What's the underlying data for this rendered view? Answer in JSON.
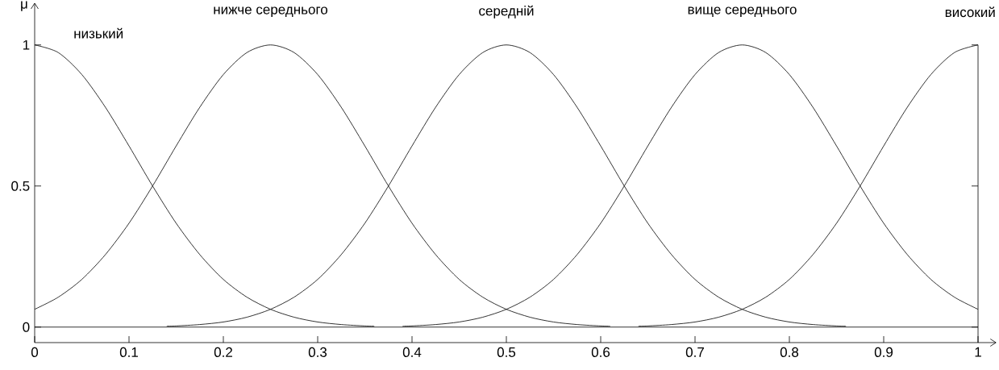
{
  "chart_data": {
    "type": "line",
    "ylabel": "μ",
    "xlim": [
      0,
      1
    ],
    "ylim": [
      -0.055,
      1.15
    ],
    "xticks": [
      0,
      0.1,
      0.2,
      0.3,
      0.4,
      0.5,
      0.6,
      0.7,
      0.8,
      0.9,
      1
    ],
    "yticks": [
      0,
      0.5,
      1
    ],
    "series": [
      {
        "name": "низький",
        "color": "#000000",
        "x": [
          0,
          0.025,
          0.05,
          0.075,
          0.1,
          0.125,
          0.15,
          0.175,
          0.2,
          0.225,
          0.25,
          0.275,
          0.3,
          0.325,
          0.35,
          0.36
        ],
        "values": [
          1,
          0.973,
          0.895,
          0.779,
          0.642,
          0.5,
          0.368,
          0.257,
          0.169,
          0.106,
          0.063,
          0.035,
          0.018,
          0.009,
          0.004,
          0.003
        ]
      },
      {
        "name": "нижче середнього",
        "color": "#000000",
        "x": [
          0,
          0.025,
          0.05,
          0.075,
          0.1,
          0.125,
          0.15,
          0.175,
          0.2,
          0.225,
          0.25,
          0.275,
          0.3,
          0.325,
          0.35,
          0.375,
          0.4,
          0.425,
          0.45,
          0.475,
          0.5,
          0.525,
          0.55,
          0.575,
          0.6,
          0.61
        ],
        "values": [
          0.063,
          0.106,
          0.169,
          0.257,
          0.368,
          0.5,
          0.642,
          0.779,
          0.895,
          0.973,
          1,
          0.973,
          0.895,
          0.779,
          0.642,
          0.5,
          0.368,
          0.257,
          0.169,
          0.106,
          0.063,
          0.035,
          0.018,
          0.009,
          0.004,
          0.003
        ]
      },
      {
        "name": "середній",
        "color": "#000000",
        "x": [
          0.14,
          0.15,
          0.175,
          0.2,
          0.225,
          0.25,
          0.275,
          0.3,
          0.325,
          0.35,
          0.375,
          0.4,
          0.425,
          0.45,
          0.475,
          0.5,
          0.525,
          0.55,
          0.575,
          0.6,
          0.625,
          0.65,
          0.675,
          0.7,
          0.725,
          0.75,
          0.775,
          0.8,
          0.825,
          0.85,
          0.86
        ],
        "values": [
          0.003,
          0.004,
          0.009,
          0.018,
          0.035,
          0.063,
          0.106,
          0.169,
          0.257,
          0.368,
          0.5,
          0.642,
          0.779,
          0.895,
          0.973,
          1,
          0.973,
          0.895,
          0.779,
          0.642,
          0.5,
          0.368,
          0.257,
          0.169,
          0.106,
          0.063,
          0.035,
          0.018,
          0.009,
          0.004,
          0.003
        ]
      },
      {
        "name": "вище середнього",
        "color": "#000000",
        "x": [
          0.39,
          0.4,
          0.425,
          0.45,
          0.475,
          0.5,
          0.525,
          0.55,
          0.575,
          0.6,
          0.625,
          0.65,
          0.675,
          0.7,
          0.725,
          0.75,
          0.775,
          0.8,
          0.825,
          0.85,
          0.875,
          0.9,
          0.925,
          0.95,
          0.975,
          1
        ],
        "values": [
          0.003,
          0.004,
          0.009,
          0.018,
          0.035,
          0.063,
          0.106,
          0.169,
          0.257,
          0.368,
          0.5,
          0.642,
          0.779,
          0.895,
          0.973,
          1,
          0.973,
          0.895,
          0.779,
          0.642,
          0.5,
          0.368,
          0.257,
          0.169,
          0.106,
          0.063
        ]
      },
      {
        "name": "високий",
        "color": "#000000",
        "x": [
          0.64,
          0.65,
          0.675,
          0.7,
          0.725,
          0.75,
          0.775,
          0.8,
          0.825,
          0.85,
          0.875,
          0.9,
          0.925,
          0.95,
          0.975,
          1
        ],
        "values": [
          0.003,
          0.004,
          0.009,
          0.018,
          0.035,
          0.063,
          0.106,
          0.169,
          0.257,
          0.368,
          0.5,
          0.642,
          0.779,
          0.895,
          0.973,
          1
        ]
      }
    ],
    "ref_lines": [
      {
        "axis": "y",
        "value": 0
      }
    ],
    "legend": false,
    "grid": false,
    "marker": "none",
    "line_style": "solid"
  }
}
